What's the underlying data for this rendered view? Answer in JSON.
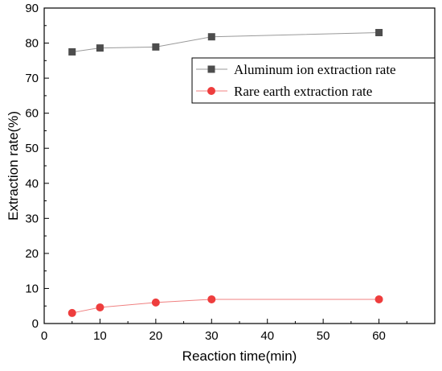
{
  "chart_data": {
    "type": "line",
    "xlabel": "Reaction time(min)",
    "ylabel": "Extraction rate(%)",
    "xlim": [
      0,
      70
    ],
    "ylim": [
      0,
      90
    ],
    "xticks": [
      0,
      10,
      20,
      30,
      40,
      50,
      60
    ],
    "yticks": [
      0,
      10,
      20,
      30,
      40,
      50,
      60,
      70,
      80,
      90
    ],
    "x": [
      5,
      10,
      20,
      30,
      60
    ],
    "grid": false,
    "legend_position": "top-right",
    "series": [
      {
        "name": "Aluminum ion extraction rate",
        "values": [
          77.5,
          78.6,
          78.9,
          81.8,
          83.0
        ],
        "marker": "square",
        "marker_color": "#4d4d4d",
        "line_color": "#999999"
      },
      {
        "name": "Rare earth extraction rate",
        "values": [
          3.0,
          4.6,
          6.0,
          6.9,
          6.9
        ],
        "marker": "circle",
        "marker_color": "#ee3d3d",
        "line_color": "#f08080"
      }
    ]
  }
}
